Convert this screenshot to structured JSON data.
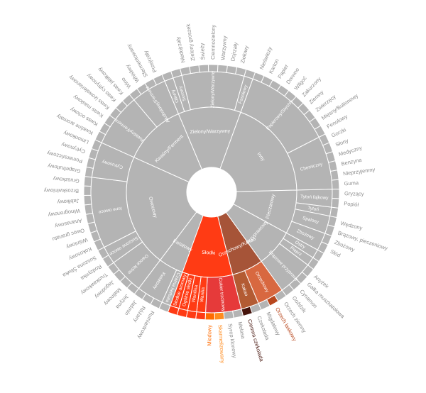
{
  "chart_data": {
    "type": "sunburst",
    "title": "",
    "colors": {
      "default": "#b4b4b4",
      "inner_text": "#ffffff",
      "outer_text": "#8c8c8c",
      "sweet": "#ff3b14",
      "nutty": "#a65438",
      "brown_sugar": "#e63a3a",
      "cocoa": "#b35b33",
      "nut_cocoa_level2": "#d86840",
      "honey": "#ff6b00",
      "caramel": "#ff8c1f",
      "dark_chocolate": "#46140c",
      "chocolate": "#7a1e14",
      "hazelnut": "#b8471d",
      "almond": "#c96a3d"
    },
    "inner_rotation_deg": 0,
    "tree": [
      {
        "name": "Kwiatowy",
        "children": [
          {
            "name": "Czarna herbata",
            "children": []
          },
          {
            "name": "Kwiatowy",
            "children": [
              {
                "name": "Rumiankowy",
                "children": []
              },
              {
                "name": "Różany",
                "children": []
              },
              {
                "name": "Jaśmin",
                "children": []
              }
            ]
          }
        ]
      },
      {
        "name": "Owocowy",
        "children": [
          {
            "name": "Owoce leśne",
            "children": [
              {
                "name": "Jeżyna",
                "children": []
              },
              {
                "name": "Malinowy",
                "children": []
              },
              {
                "name": "Jagodowy",
                "children": []
              },
              {
                "name": "Truskawkowy",
                "children": []
              }
            ]
          },
          {
            "name": "Suszone owoce",
            "children": [
              {
                "name": "Rodzynka",
                "children": []
              },
              {
                "name": "Suszona Śliwka",
                "children": []
              }
            ]
          },
          {
            "name": "Inne owoce",
            "children": [
              {
                "name": "Kokosowy",
                "children": []
              },
              {
                "name": "Wiśniowy",
                "children": []
              },
              {
                "name": "Owoc granatu",
                "children": []
              },
              {
                "name": "Ananasowy",
                "children": []
              },
              {
                "name": "Winogronowy",
                "children": []
              },
              {
                "name": "Jabłkowy",
                "children": []
              },
              {
                "name": "Brzoskwiniowy",
                "children": []
              },
              {
                "name": "Gruszkowy",
                "children": []
              }
            ]
          },
          {
            "name": "Cytrusowy",
            "children": [
              {
                "name": "Grapefruitowy",
                "children": []
              },
              {
                "name": "Pomarańczowy",
                "children": []
              },
              {
                "name": "Cytrynowy",
                "children": []
              },
              {
                "name": "Limonkowy",
                "children": []
              }
            ]
          }
        ]
      },
      {
        "name": "Kwaśny/Ferment",
        "children": [
          {
            "name": "Kwaśny/Ferment",
            "children": [
              {
                "name": "Kwaśne aromaty",
                "children": []
              },
              {
                "name": "Kwas octowy",
                "children": []
              },
              {
                "name": "Kwas masłowy",
                "children": []
              },
              {
                "name": "Kwas izowalerianowy",
                "children": []
              },
              {
                "name": "Kwas cytrynowy",
                "children": []
              },
              {
                "name": "Kwas jabłkowy",
                "children": []
              }
            ]
          },
          {
            "name": "Alkoholowy/Ferment",
            "children": [
              {
                "name": "Wino",
                "children": []
              },
              {
                "name": "Whiskey",
                "children": []
              },
              {
                "name": "Sfermentowany",
                "children": []
              },
              {
                "name": "Przejrzały",
                "children": []
              }
            ]
          }
        ]
      },
      {
        "name": "Zielony/Warzywny",
        "children": [
          {
            "name": "Oliwny",
            "children": []
          },
          {
            "name": "Surowy",
            "children": []
          },
          {
            "name": "Zielony/Warzywny",
            "children": [
              {
                "name": "Niedojrzały",
                "children": []
              },
              {
                "name": "Zielony groszek",
                "children": []
              },
              {
                "name": "Świeży",
                "children": []
              },
              {
                "name": "Ciemnozielony",
                "children": []
              },
              {
                "name": "Warzywny",
                "children": []
              },
              {
                "name": "Dojrzały",
                "children": []
              },
              {
                "name": "Ziołowy",
                "children": []
              }
            ]
          },
          {
            "name": "Fasolowy",
            "children": []
          }
        ]
      },
      {
        "name": "Inny",
        "children": [
          {
            "name": "Papierowy/Stęchły",
            "children": [
              {
                "name": "Nieświeży",
                "children": []
              },
              {
                "name": "Karton",
                "children": []
              },
              {
                "name": "Papier",
                "children": []
              },
              {
                "name": "Drewno",
                "children": []
              },
              {
                "name": "Wilgoć",
                "children": []
              },
              {
                "name": "Zakurzony",
                "children": []
              },
              {
                "name": "Ziemny",
                "children": []
              },
              {
                "name": "Zwierzęcy",
                "children": []
              },
              {
                "name": "Mięsny/Bulionowy",
                "children": []
              },
              {
                "name": "Fenolowy",
                "children": []
              }
            ]
          },
          {
            "name": "Chemiczny",
            "children": [
              {
                "name": "Gorzki",
                "children": []
              },
              {
                "name": "Słony",
                "children": []
              },
              {
                "name": "Medyczny",
                "children": []
              },
              {
                "name": "Benzyna",
                "children": []
              },
              {
                "name": "Nieprzyjemny",
                "children": []
              },
              {
                "name": "Guma",
                "children": []
              }
            ]
          }
        ]
      },
      {
        "name": "Pieczarowy",
        "children": [
          {
            "name": "Tytoń fajkowy",
            "children": [
              {
                "name": "Gryzący",
                "children": []
              },
              {
                "name": "Popiół",
                "children": []
              }
            ]
          },
          {
            "name": "Tytoń",
            "children": []
          },
          {
            "name": "Spalony",
            "children": [
              {
                "name": "Wędzony",
                "children": []
              },
              {
                "name": "Brązowy, pieczeniowy",
                "children": []
              }
            ]
          },
          {
            "name": "Zbożowy",
            "children": [
              {
                "name": "Zbożowy",
                "children": []
              },
              {
                "name": "Słód",
                "children": []
              }
            ]
          }
        ]
      },
      {
        "name": "Przyprawowy",
        "children": [
          {
            "name": "Ostry",
            "children": []
          },
          {
            "name": "Pieprz",
            "children": []
          },
          {
            "name": "Brązowe przyprawy",
            "children": [
              {
                "name": "Anyżek",
                "children": []
              },
              {
                "name": "Gałka muszkatołowa",
                "children": []
              },
              {
                "name": "Cynamon",
                "children": []
              },
              {
                "name": "Goździk",
                "children": []
              }
            ]
          }
        ]
      },
      {
        "name": "Orzechowy/Kakao",
        "color_key": "nutty",
        "children": [
          {
            "name": "Orzechowy",
            "color_key": "nut_cocoa_level2",
            "children": [
              {
                "name": "Orzech ziemny",
                "children": []
              },
              {
                "name": "Orzech laskowy",
                "color_key": "hazelnut",
                "highlight": true,
                "children": []
              },
              {
                "name": "Migdałowy",
                "children": []
              }
            ]
          },
          {
            "name": "Kakao",
            "color_key": "cocoa",
            "children": [
              {
                "name": "Czekolada",
                "children": []
              },
              {
                "name": "Ciemna czekolada",
                "color_key": "dark_chocolate",
                "highlight": true,
                "children": []
              }
            ]
          }
        ]
      },
      {
        "name": "Słodki",
        "color_key": "sweet",
        "children": [
          {
            "name": "Cukier trzcinowy",
            "color_key": "brown_sugar",
            "children": [
              {
                "name": "Melasa",
                "children": []
              },
              {
                "name": "Syrop klonowy",
                "children": []
              },
              {
                "name": "Skarmelizowany",
                "color_key": "caramel",
                "highlight": true,
                "children": []
              },
              {
                "name": "Miodowy",
                "color_key": "honey",
                "highlight": true,
                "children": []
              }
            ]
          },
          {
            "name": "Wanilia",
            "children": []
          },
          {
            "name": "Wanilina",
            "children": []
          },
          {
            "name": "Ogólnie słodki",
            "children": []
          },
          {
            "name": "Słodkie aromaty",
            "children": []
          }
        ]
      }
    ]
  }
}
